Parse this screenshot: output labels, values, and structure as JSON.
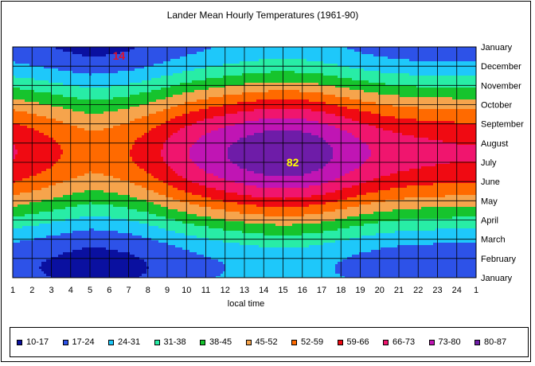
{
  "chart_data": {
    "type": "heatmap",
    "title": "Lander Mean Hourly Temperatures (1961-90)",
    "xlabel": "local time",
    "ylabel": "",
    "x_ticks": [
      "1",
      "2",
      "3",
      "4",
      "5",
      "6",
      "7",
      "8",
      "9",
      "10",
      "11",
      "12",
      "13",
      "14",
      "15",
      "16",
      "17",
      "18",
      "19",
      "20",
      "21",
      "22",
      "23",
      "24",
      "1"
    ],
    "y_ticks": [
      "January",
      "February",
      "March",
      "April",
      "May",
      "June",
      "July",
      "August",
      "September",
      "October",
      "November",
      "December",
      "January"
    ],
    "bands": [
      {
        "label": "10-17",
        "color": "#0A10A0"
      },
      {
        "label": "17-24",
        "color": "#2D52E8"
      },
      {
        "label": "24-31",
        "color": "#1EC8FA"
      },
      {
        "label": "31-38",
        "color": "#28EDA6"
      },
      {
        "label": "38-45",
        "color": "#16C42D"
      },
      {
        "label": "45-52",
        "color": "#F6A44C"
      },
      {
        "label": "52-59",
        "color": "#FF6A00"
      },
      {
        "label": "59-66",
        "color": "#F00A12"
      },
      {
        "label": "66-73",
        "color": "#F0156E"
      },
      {
        "label": "73-80",
        "color": "#C015B4"
      },
      {
        "label": "80-87",
        "color": "#6E1CA8"
      }
    ],
    "annotations": [
      {
        "text": "14",
        "hour": 6,
        "month": "January",
        "color": "#E0102A"
      },
      {
        "text": "82",
        "hour": 15,
        "month": "July",
        "color": "#FFFF00"
      }
    ],
    "grid": true
  }
}
